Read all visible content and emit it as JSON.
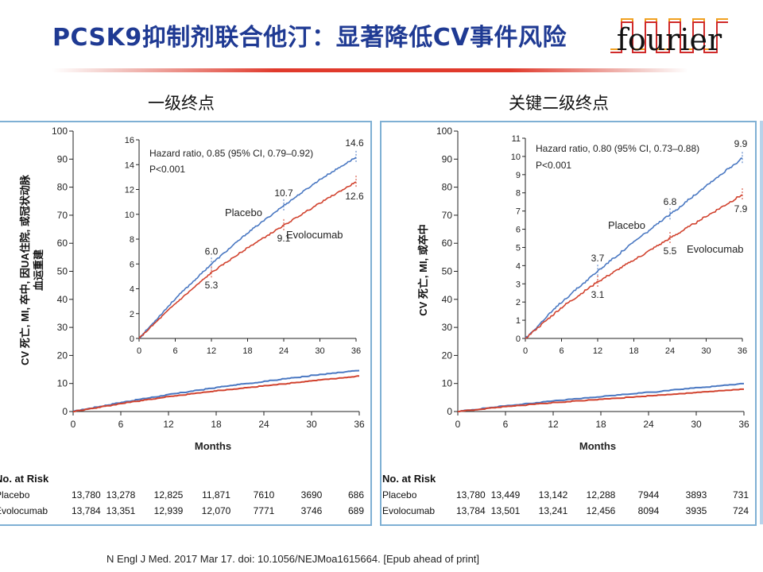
{
  "title": "PCSK9抑制剂联合他汀：显著降低CV事件风险",
  "logo_text": "fourier",
  "citation": "N Engl J Med. 2017 Mar 17. doi: 10.1056/NEJMoa1615664. [Epub ahead of print]",
  "colors": {
    "title": "#1f3a93",
    "placebo": "#4a78c2",
    "evolocumab": "#d1422e",
    "panel_border": "#7fb0d4",
    "accent_red": "#e03a2c"
  },
  "chart_data": [
    {
      "type": "line",
      "heading": "一级终点",
      "ylabel": "CV 死亡, MI, 卒中, 因UA住院, 或冠状动脉血运重建",
      "xlabel": "Months",
      "x_ticks": [
        0,
        6,
        12,
        18,
        24,
        30,
        36
      ],
      "y_ticks": [
        0,
        10,
        20,
        30,
        40,
        50,
        60,
        70,
        80,
        90,
        100
      ],
      "ylim": [
        0,
        100
      ],
      "xlim": [
        0,
        36
      ],
      "series": [
        {
          "name": "Placebo",
          "x": [
            0,
            6,
            12,
            18,
            24,
            30,
            36
          ],
          "values": [
            0,
            3.2,
            6.0,
            8.5,
            10.7,
            12.8,
            14.6
          ]
        },
        {
          "name": "Evolocumab",
          "x": [
            0,
            6,
            12,
            18,
            24,
            30,
            36
          ],
          "values": [
            0,
            2.8,
            5.3,
            7.3,
            9.1,
            10.9,
            12.6
          ]
        }
      ],
      "inset": {
        "hazard_text": "Hazard ratio, 0.85 (95% CI, 0.79–0.92)",
        "p_text": "P<0.001",
        "ylim": [
          0,
          16
        ],
        "y_ticks": [
          0,
          2,
          4,
          6,
          8,
          10,
          12,
          14,
          16
        ],
        "x_ticks": [
          0,
          6,
          12,
          18,
          24,
          30,
          36
        ],
        "placebo_label": "Placebo",
        "evolocumab_label": "Evolocumab",
        "annotations": [
          {
            "text": "6.0",
            "x": 12,
            "y": 6.0,
            "series": "Placebo"
          },
          {
            "text": "5.3",
            "x": 12,
            "y": 5.3,
            "series": "Evolocumab"
          },
          {
            "text": "10.7",
            "x": 24,
            "y": 10.7,
            "series": "Placebo"
          },
          {
            "text": "9.1",
            "x": 24,
            "y": 9.1,
            "series": "Evolocumab"
          },
          {
            "text": "14.6",
            "x": 36,
            "y": 14.6,
            "series": "Placebo"
          },
          {
            "text": "12.6",
            "x": 36,
            "y": 12.6,
            "series": "Evolocumab"
          }
        ]
      },
      "at_risk": {
        "title": "No. at Risk",
        "rows": [
          {
            "name": "Placebo",
            "values": [
              "13,780",
              "13,278",
              "12,825",
              "11,871",
              "7610",
              "3690",
              "686"
            ]
          },
          {
            "name": "Evolocumab",
            "values": [
              "13,784",
              "13,351",
              "12,939",
              "12,070",
              "7771",
              "3746",
              "689"
            ]
          }
        ]
      }
    },
    {
      "type": "line",
      "heading": "关键二级终点",
      "ylabel": "CV 死亡, MI, 或卒中",
      "xlabel": "Months",
      "x_ticks": [
        0,
        6,
        12,
        18,
        24,
        30,
        36
      ],
      "y_ticks": [
        0,
        10,
        20,
        30,
        40,
        50,
        60,
        70,
        80,
        90,
        100
      ],
      "ylim": [
        0,
        100
      ],
      "xlim": [
        0,
        36
      ],
      "series": [
        {
          "name": "Placebo",
          "x": [
            0,
            6,
            12,
            18,
            24,
            30,
            36
          ],
          "values": [
            0,
            2.0,
            3.7,
            5.3,
            6.8,
            8.4,
            9.9
          ]
        },
        {
          "name": "Evolocumab",
          "x": [
            0,
            6,
            12,
            18,
            24,
            30,
            36
          ],
          "values": [
            0,
            1.7,
            3.1,
            4.3,
            5.5,
            6.7,
            7.9
          ]
        }
      ],
      "inset": {
        "hazard_text": "Hazard ratio, 0.80 (95% CI, 0.73–0.88)",
        "p_text": "P<0.001",
        "ylim": [
          0,
          11
        ],
        "y_ticks": [
          0,
          1,
          2,
          3,
          4,
          5,
          6,
          7,
          8,
          9,
          10,
          11
        ],
        "x_ticks": [
          0,
          6,
          12,
          18,
          24,
          30,
          36
        ],
        "placebo_label": "Placebo",
        "evolocumab_label": "Evolocumab",
        "annotations": [
          {
            "text": "3.7",
            "x": 12,
            "y": 3.7,
            "series": "Placebo"
          },
          {
            "text": "3.1",
            "x": 12,
            "y": 3.1,
            "series": "Evolocumab"
          },
          {
            "text": "6.8",
            "x": 24,
            "y": 6.8,
            "series": "Placebo"
          },
          {
            "text": "5.5",
            "x": 24,
            "y": 5.5,
            "series": "Evolocumab"
          },
          {
            "text": "9.9",
            "x": 36,
            "y": 9.9,
            "series": "Placebo"
          },
          {
            "text": "7.9",
            "x": 36,
            "y": 7.9,
            "series": "Evolocumab"
          }
        ]
      },
      "at_risk": {
        "title": "No. at Risk",
        "rows": [
          {
            "name": "Placebo",
            "values": [
              "13,780",
              "13,449",
              "13,142",
              "12,288",
              "7944",
              "3893",
              "731"
            ]
          },
          {
            "name": "Evolocumab",
            "values": [
              "13,784",
              "13,501",
              "13,241",
              "12,456",
              "8094",
              "3935",
              "724"
            ]
          }
        ]
      }
    }
  ]
}
